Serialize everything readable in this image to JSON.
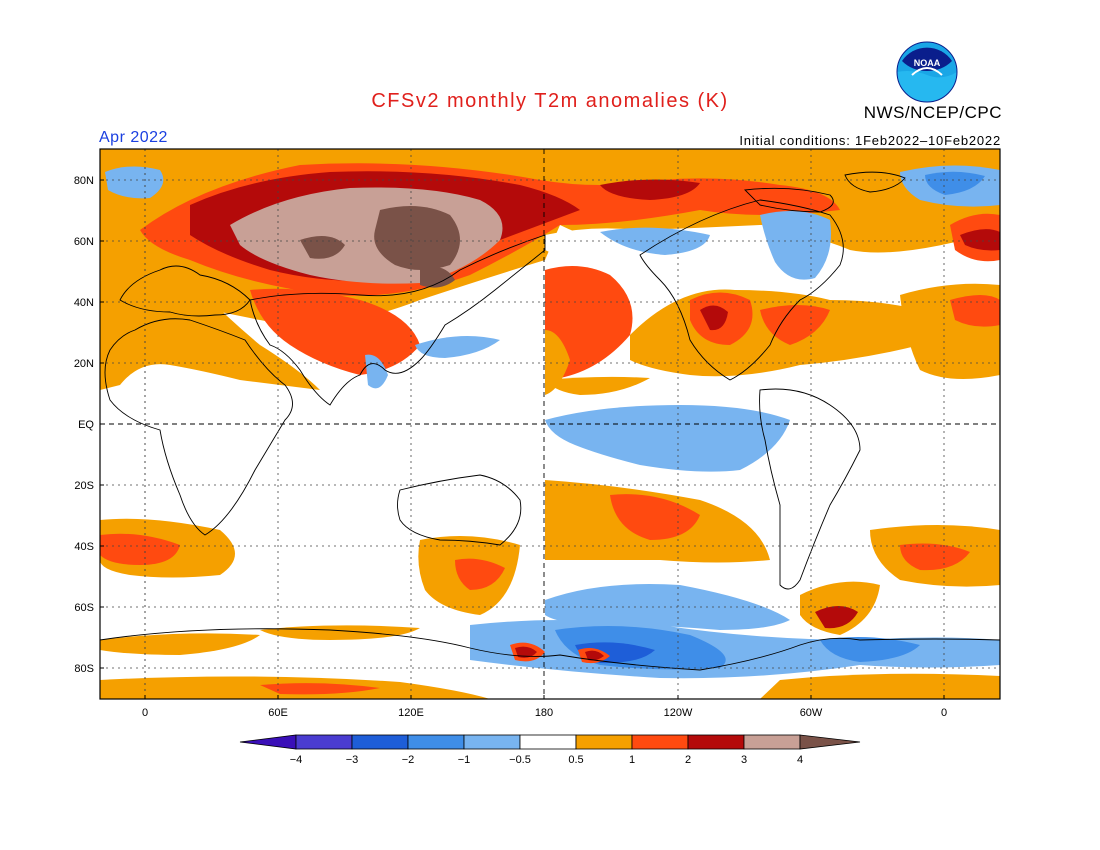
{
  "title": "CFSv2 monthly T2m anomalies (K)",
  "agency": "NWS/NCEP/CPC",
  "logo_text": "NOAA",
  "target_month": "Apr 2022",
  "initial_conditions": "Initial conditions: 1Feb2022–10Feb2022",
  "axes": {
    "lat_labels": [
      "80N",
      "60N",
      "40N",
      "20N",
      "EQ",
      "20S",
      "40S",
      "60S",
      "80S"
    ],
    "lon_labels": [
      "0",
      "60E",
      "120E",
      "180",
      "120W",
      "60W",
      "0"
    ]
  },
  "colorbar": {
    "tick_labels": [
      "−4",
      "−3",
      "−2",
      "−1",
      "−0.5",
      "0.5",
      "1",
      "2",
      "3",
      "4"
    ],
    "colors": [
      "#3a0fb8",
      "#4a3cd0",
      "#1e5ed8",
      "#3f8ee8",
      "#78b4f0",
      "#ffffff",
      "#f5a000",
      "#ff4a10",
      "#b40a0a",
      "#c8a096",
      "#7a5248"
    ]
  }
}
